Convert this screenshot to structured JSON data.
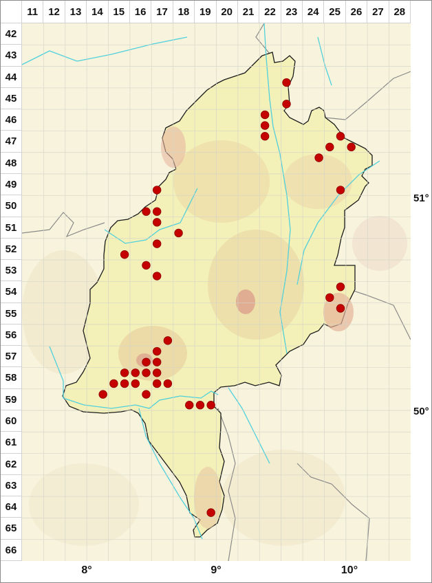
{
  "grid": {
    "columns": [
      "11",
      "12",
      "13",
      "14",
      "15",
      "16",
      "17",
      "18",
      "19",
      "20",
      "21",
      "22",
      "23",
      "24",
      "25",
      "26",
      "27",
      "28"
    ],
    "rows": [
      "42",
      "43",
      "44",
      "45",
      "46",
      "47",
      "48",
      "49",
      "50",
      "51",
      "52",
      "53",
      "54",
      "55",
      "56",
      "57",
      "58",
      "59",
      "60",
      "61",
      "62",
      "63",
      "64",
      "65",
      "66"
    ]
  },
  "longitude_labels": [
    "8°",
    "9°",
    "10°"
  ],
  "latitude_labels": [
    "51°",
    "50°"
  ],
  "colors": {
    "background": "#f7f3dc",
    "region_fill": "#f3f0b8",
    "highlands": "#e6cf98",
    "peaks": "#dca08c",
    "rivers": "#4fd0dc",
    "region_border": "#1a1a1a",
    "other_borders": "#8a8a8a",
    "occurrence_dot": "#c40000"
  },
  "occurrences": [
    {
      "row": 44,
      "col": 23,
      "quadrant": 3
    },
    {
      "row": 45,
      "col": 23,
      "quadrant": 3
    },
    {
      "row": 46,
      "col": 22,
      "quadrant": 1
    },
    {
      "row": 46,
      "col": 22,
      "quadrant": 3
    },
    {
      "row": 47,
      "col": 22,
      "quadrant": 1
    },
    {
      "row": 47,
      "col": 25,
      "quadrant": 2
    },
    {
      "row": 47,
      "col": 25,
      "quadrant": 3
    },
    {
      "row": 47,
      "col": 26,
      "quadrant": 3
    },
    {
      "row": 48,
      "col": 24,
      "quadrant": 2
    },
    {
      "row": 49,
      "col": 25,
      "quadrant": 4
    },
    {
      "row": 49,
      "col": 17,
      "quadrant": 3
    },
    {
      "row": 50,
      "col": 16,
      "quadrant": 4
    },
    {
      "row": 50,
      "col": 17,
      "quadrant": 3
    },
    {
      "row": 51,
      "col": 17,
      "quadrant": 1
    },
    {
      "row": 51,
      "col": 18,
      "quadrant": 3
    },
    {
      "row": 52,
      "col": 17,
      "quadrant": 1
    },
    {
      "row": 52,
      "col": 15,
      "quadrant": 4
    },
    {
      "row": 53,
      "col": 16,
      "quadrant": 2
    },
    {
      "row": 53,
      "col": 17,
      "quadrant": 3
    },
    {
      "row": 54,
      "col": 25,
      "quadrant": 2
    },
    {
      "row": 54,
      "col": 25,
      "quadrant": 3
    },
    {
      "row": 55,
      "col": 25,
      "quadrant": 2
    },
    {
      "row": 56,
      "col": 17,
      "quadrant": 4
    },
    {
      "row": 57,
      "col": 17,
      "quadrant": 1
    },
    {
      "row": 57,
      "col": 16,
      "quadrant": 4
    },
    {
      "row": 57,
      "col": 17,
      "quadrant": 3
    },
    {
      "row": 58,
      "col": 15,
      "quadrant": 2
    },
    {
      "row": 58,
      "col": 16,
      "quadrant": 1
    },
    {
      "row": 58,
      "col": 16,
      "quadrant": 2
    },
    {
      "row": 58,
      "col": 17,
      "quadrant": 1
    },
    {
      "row": 58,
      "col": 15,
      "quadrant": 3
    },
    {
      "row": 58,
      "col": 15,
      "quadrant": 4
    },
    {
      "row": 58,
      "col": 16,
      "quadrant": 3
    },
    {
      "row": 58,
      "col": 17,
      "quadrant": 3
    },
    {
      "row": 58,
      "col": 17,
      "quadrant": 4
    },
    {
      "row": 59,
      "col": 14,
      "quadrant": 2
    },
    {
      "row": 59,
      "col": 16,
      "quadrant": 2
    },
    {
      "row": 59,
      "col": 18,
      "quadrant": 4
    },
    {
      "row": 59,
      "col": 19,
      "quadrant": 3
    },
    {
      "row": 59,
      "col": 19,
      "quadrant": 4
    },
    {
      "row": 64,
      "col": 19,
      "quadrant": 4
    }
  ]
}
